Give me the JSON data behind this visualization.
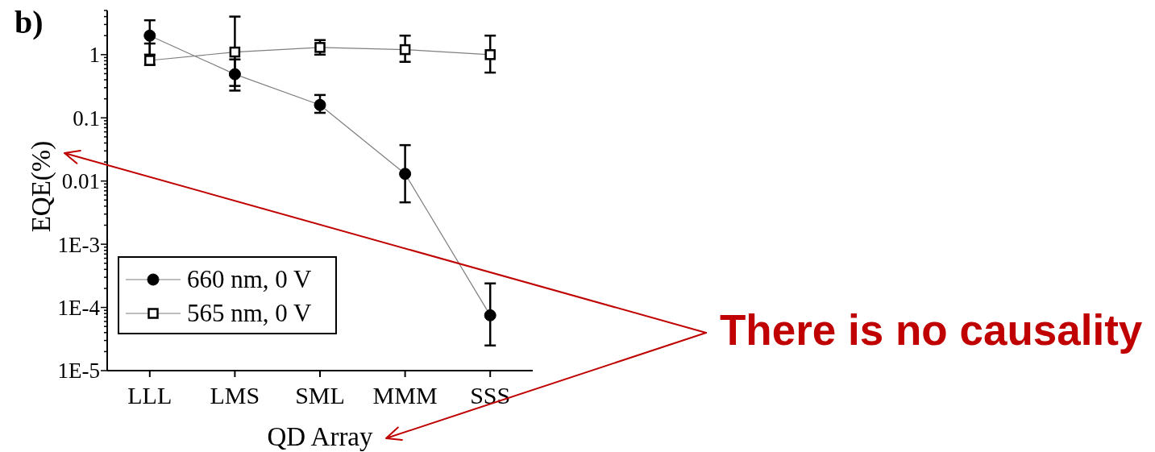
{
  "chart_data": {
    "type": "line",
    "title": "b)",
    "xlabel": "QD Array",
    "ylabel": "EQE(%)",
    "annotations": [
      "There is no causality"
    ],
    "categories": [
      "LLL",
      "LMS",
      "SML",
      "MMM",
      "SSS"
    ],
    "series": [
      {
        "name": "660 nm, 0 V",
        "color": "#000000",
        "marker": "circle",
        "values": [
          2.0,
          0.49,
          0.16,
          0.013,
          7.5e-05
        ],
        "errors": [
          [
            1.0,
            3.5
          ],
          [
            0.27,
            0.84
          ],
          [
            0.12,
            0.23
          ],
          [
            0.0046,
            0.037
          ],
          [
            2.5e-05,
            0.00024
          ]
        ]
      },
      {
        "name": "565 nm, 0 V",
        "color": "#000000",
        "marker": "square",
        "values": [
          0.81,
          1.1,
          1.3,
          1.2,
          1.0
        ],
        "errors": [
          [
            0.69,
            1.5
          ],
          [
            0.32,
            4.0
          ],
          [
            1.0,
            1.7
          ],
          [
            0.77,
            2.0
          ],
          [
            0.52,
            2.0
          ]
        ]
      }
    ],
    "log": true,
    "ylim": [
      1e-05,
      5
    ],
    "yticks": [
      {
        "value": 1e-05,
        "label": "1E-5"
      },
      {
        "value": 2e-05,
        "label": null
      },
      {
        "value": 3e-05,
        "label": null
      },
      {
        "value": 4e-05,
        "label": null
      },
      {
        "value": 5e-05,
        "label": null
      },
      {
        "value": 6e-05,
        "label": null
      },
      {
        "value": 7e-05,
        "label": null
      },
      {
        "value": 8e-05,
        "label": null
      },
      {
        "value": 9e-05,
        "label": null
      },
      {
        "value": 0.0001,
        "label": "1E-4"
      },
      {
        "value": 0.0002,
        "label": null
      },
      {
        "value": 0.0003,
        "label": null
      },
      {
        "value": 0.0004,
        "label": null
      },
      {
        "value": 0.0005,
        "label": null
      },
      {
        "value": 0.0006,
        "label": null
      },
      {
        "value": 0.0007,
        "label": null
      },
      {
        "value": 0.0008,
        "label": null
      },
      {
        "value": 0.0009,
        "label": null
      },
      {
        "value": 0.001,
        "label": "1E-3"
      },
      {
        "value": 0.002,
        "label": null
      },
      {
        "value": 0.003,
        "label": null
      },
      {
        "value": 0.004,
        "label": null
      },
      {
        "value": 0.005,
        "label": null
      },
      {
        "value": 0.006,
        "label": null
      },
      {
        "value": 0.007,
        "label": null
      },
      {
        "value": 0.008,
        "label": null
      },
      {
        "value": 0.009,
        "label": null
      },
      0.01,
      {
        "value": 0.02,
        "label": null
      },
      {
        "value": 0.03,
        "label": null
      },
      {
        "value": 0.04,
        "label": null
      },
      {
        "value": 0.05,
        "label": null
      },
      {
        "value": 0.06,
        "label": null
      },
      {
        "value": 0.07,
        "label": null
      },
      {
        "value": 0.08,
        "label": null
      },
      {
        "value": 0.09,
        "label": null
      },
      0.1,
      {
        "value": 0.2,
        "label": null
      },
      {
        "value": 0.3,
        "label": null
      },
      {
        "value": 0.4,
        "label": null
      },
      {
        "value": 0.5,
        "label": null
      },
      {
        "value": 0.6,
        "label": null
      },
      {
        "value": 0.7,
        "label": null
      },
      {
        "value": 0.8,
        "label": null
      },
      {
        "value": 0.9,
        "label": null
      },
      1,
      {
        "value": 2,
        "label": null
      },
      {
        "value": 3,
        "label": null
      },
      {
        "value": 4,
        "label": null
      },
      {
        "value": 5,
        "label": null
      }
    ],
    "legend": "bottom left"
  }
}
